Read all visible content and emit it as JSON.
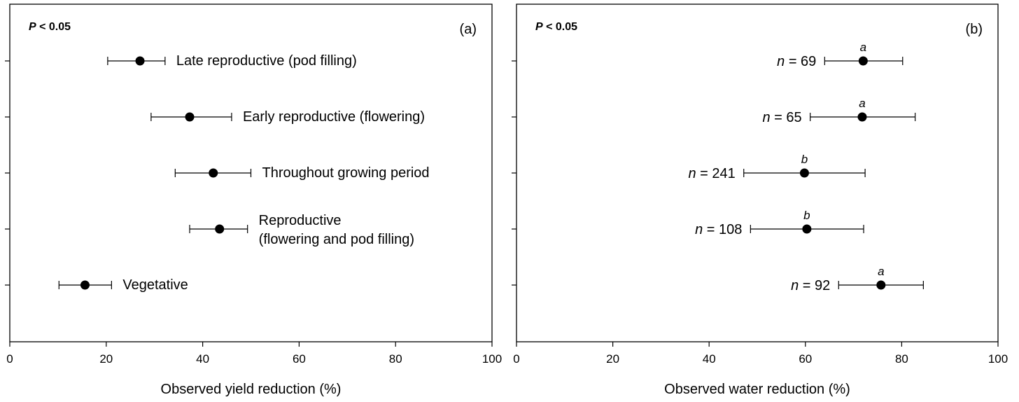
{
  "chart_data": [
    {
      "type": "scatter",
      "panel_tag": "(a)",
      "stat_prefix": "P",
      "stat_suffix": " < 0.05",
      "xlabel": "Observed yield reduction (%)",
      "xlim": [
        0,
        100
      ],
      "xticks": [
        "0",
        "20",
        "40",
        "60",
        "80",
        "100"
      ],
      "grid": false,
      "points": [
        {
          "label": "Late reproductive (pod filling)",
          "value": 27,
          "err_low": 20.3,
          "err_high": 32.2
        },
        {
          "label": "Early reproductive (flowering)",
          "value": 37.3,
          "err_low": 29.3,
          "err_high": 46
        },
        {
          "label": "Throughout growing period",
          "value": 42.2,
          "err_low": 34.3,
          "err_high": 50
        },
        {
          "label": "Reproductive",
          "label_line2": "(flowering and pod filling)",
          "value": 43.5,
          "err_low": 37.3,
          "err_high": 49.3
        },
        {
          "label": "Vegetative",
          "value": 15.6,
          "err_low": 10.2,
          "err_high": 21.1
        }
      ]
    },
    {
      "type": "scatter",
      "panel_tag": "(b)",
      "stat_prefix": "P",
      "stat_suffix": " < 0.05",
      "xlabel": "Observed water reduction (%)",
      "xlim": [
        0,
        100
      ],
      "xticks": [
        "0",
        "20",
        "40",
        "60",
        "80",
        "100"
      ],
      "grid": false,
      "points": [
        {
          "n_prefix": "n",
          "n_text": " = 69",
          "letter": "a",
          "value": 72,
          "err_low": 64,
          "err_high": 80.2
        },
        {
          "n_prefix": "n",
          "n_text": " = 65",
          "letter": "a",
          "value": 71.8,
          "err_low": 61,
          "err_high": 82.8
        },
        {
          "n_prefix": "n",
          "n_text": " = 241",
          "letter": "b",
          "value": 59.8,
          "err_low": 47.2,
          "err_high": 72.4
        },
        {
          "n_prefix": "n",
          "n_text": " = 108",
          "letter": "b",
          "value": 60.3,
          "err_low": 48.6,
          "err_high": 72.1
        },
        {
          "n_prefix": "n",
          "n_text": " = 92",
          "letter": "a",
          "value": 75.7,
          "err_low": 66.9,
          "err_high": 84.5
        }
      ]
    }
  ]
}
